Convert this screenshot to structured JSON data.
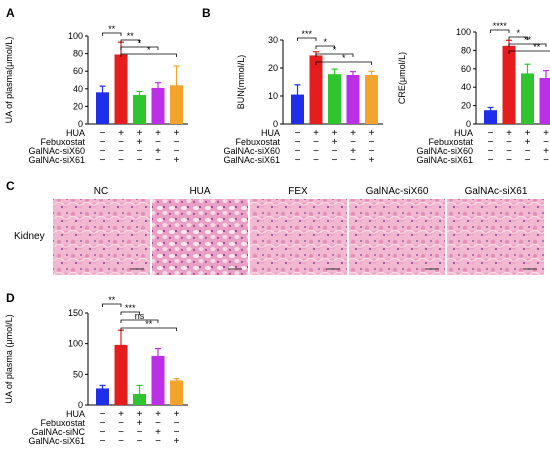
{
  "panel_letters": [
    "A",
    "B",
    "C",
    "D"
  ],
  "kidney_label": "Kidney",
  "histology_labels": [
    "NC",
    "HUA",
    "FEX",
    "GalNAc-siX60",
    "GalNAc-siX61"
  ],
  "chart_data": [
    {
      "type": "bar",
      "panel": "A",
      "ylabel": "UA of plasma(μmol/L)",
      "ylim": [
        0,
        100
      ],
      "yticks": [
        "0",
        "20",
        "40",
        "60",
        "80",
        "100"
      ],
      "categories": [
        "NC",
        "HUA",
        "Febuxostat",
        "GalNAc-siX60",
        "GalNAc-siX61"
      ],
      "values": [
        36,
        79,
        33,
        41,
        44
      ],
      "errors": [
        7,
        14,
        4,
        6,
        22
      ],
      "colors": [
        "#1f2ee8",
        "#e51d1d",
        "#2ec52e",
        "#bb2fe6",
        "#f4a32c"
      ],
      "treatments": [
        {
          "label": "HUA",
          "signs": [
            "−",
            "+",
            "+",
            "+",
            "+"
          ]
        },
        {
          "label": "Febuxostat",
          "signs": [
            "−",
            "−",
            "+",
            "−",
            "−"
          ]
        },
        {
          "label": "GalNAc-siX60",
          "signs": [
            "−",
            "−",
            "−",
            "+",
            "−"
          ]
        },
        {
          "label": "GalNAc-siX61",
          "signs": [
            "−",
            "−",
            "−",
            "−",
            "+"
          ]
        }
      ],
      "significance": [
        {
          "from": 0,
          "to": 1,
          "label": "**"
        },
        {
          "from": 1,
          "to": 2,
          "label": "**"
        },
        {
          "from": 1,
          "to": 3,
          "label": "*"
        },
        {
          "from": 1,
          "to": 4,
          "label": "*"
        }
      ]
    },
    {
      "type": "bar",
      "panel": "B",
      "ylabel": "BUN(mmol/L)",
      "ylim": [
        0,
        30
      ],
      "yticks": [
        "0",
        "10",
        "20",
        "30"
      ],
      "categories": [
        "NC",
        "HUA",
        "Febuxostat",
        "GalNAc-siX60",
        "GalNAc-siX61"
      ],
      "values": [
        10.5,
        24.5,
        17.8,
        17.5,
        17.5
      ],
      "errors": [
        3.5,
        1.3,
        1.8,
        1.2,
        1.3
      ],
      "colors": [
        "#1f2ee8",
        "#e51d1d",
        "#2ec52e",
        "#bb2fe6",
        "#f4a32c"
      ],
      "treatments": [
        {
          "label": "HUA",
          "signs": [
            "−",
            "+",
            "+",
            "+",
            "+"
          ]
        },
        {
          "label": "Febuxostat",
          "signs": [
            "−",
            "−",
            "+",
            "−",
            "−"
          ]
        },
        {
          "label": "GalNAc-siX60",
          "signs": [
            "−",
            "−",
            "−",
            "+",
            "−"
          ]
        },
        {
          "label": "GalNAc-siX61",
          "signs": [
            "−",
            "−",
            "−",
            "−",
            "+"
          ]
        }
      ],
      "significance": [
        {
          "from": 0,
          "to": 1,
          "label": "***"
        },
        {
          "from": 1,
          "to": 2,
          "label": "*"
        },
        {
          "from": 1,
          "to": 3,
          "label": "*"
        },
        {
          "from": 1,
          "to": 4,
          "label": "*"
        }
      ]
    },
    {
      "type": "bar",
      "panel": "B2",
      "ylabel": "CRE(μmol/L)",
      "ylim": [
        0,
        100
      ],
      "yticks": [
        "0",
        "20",
        "40",
        "60",
        "80",
        "100"
      ],
      "categories": [
        "NC",
        "HUA",
        "Febuxostat",
        "GalNAc-siX60",
        "GalNAc-siX61"
      ],
      "values": [
        15,
        85,
        55,
        50,
        52
      ],
      "errors": [
        3,
        6,
        10,
        8,
        9
      ],
      "colors": [
        "#1f2ee8",
        "#e51d1d",
        "#2ec52e",
        "#bb2fe6",
        "#f4a32c"
      ],
      "treatments": [
        {
          "label": "HUA",
          "signs": [
            "−",
            "+",
            "+",
            "+",
            "+"
          ]
        },
        {
          "label": "Febuxostat",
          "signs": [
            "−",
            "−",
            "+",
            "−",
            "−"
          ]
        },
        {
          "label": "GalNAc-siX60",
          "signs": [
            "−",
            "−",
            "−",
            "+",
            "−"
          ]
        },
        {
          "label": "GalNAc-siX61",
          "signs": [
            "−",
            "−",
            "−",
            "−",
            "+"
          ]
        }
      ],
      "significance": [
        {
          "from": 0,
          "to": 1,
          "label": "****"
        },
        {
          "from": 1,
          "to": 2,
          "label": "*"
        },
        {
          "from": 1,
          "to": 3,
          "label": "**"
        },
        {
          "from": 1,
          "to": 4,
          "label": "**"
        }
      ]
    },
    {
      "type": "bar",
      "panel": "D",
      "ylabel": "UA of plasma  (μmol/L)",
      "ylim": [
        0,
        150
      ],
      "yticks": [
        "0",
        "50",
        "100",
        "150"
      ],
      "categories": [
        "NC",
        "HUA",
        "Febuxostat",
        "GalNAc-siNC",
        "GalNAc-siX61"
      ],
      "values": [
        27,
        98,
        18,
        80,
        40
      ],
      "errors": [
        5,
        24,
        14,
        12,
        3
      ],
      "colors": [
        "#1f2ee8",
        "#e51d1d",
        "#2ec52e",
        "#bb2fe6",
        "#f4a32c"
      ],
      "treatments": [
        {
          "label": "HUA",
          "signs": [
            "−",
            "+",
            "+",
            "+",
            "+"
          ]
        },
        {
          "label": "Febuxostat",
          "signs": [
            "−",
            "−",
            "+",
            "−",
            "−"
          ]
        },
        {
          "label": "GalNAc-siNC",
          "signs": [
            "−",
            "−",
            "−",
            "+",
            "−"
          ]
        },
        {
          "label": "GalNAc-siX61",
          "signs": [
            "−",
            "−",
            "−",
            "−",
            "+"
          ]
        }
      ],
      "significance": [
        {
          "from": 0,
          "to": 1,
          "label": "**"
        },
        {
          "from": 1,
          "to": 2,
          "label": "***"
        },
        {
          "from": 1,
          "to": 3,
          "label": "ns"
        },
        {
          "from": 1,
          "to": 4,
          "label": "**"
        }
      ]
    }
  ]
}
